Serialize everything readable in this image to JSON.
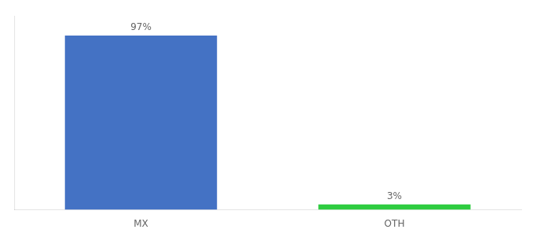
{
  "chart_data": {
    "type": "bar",
    "categories": [
      "MX",
      "OTH"
    ],
    "values": [
      97,
      3
    ],
    "value_labels": [
      "97%",
      "3%"
    ],
    "colors": [
      "#4472C4",
      "#2ECC40"
    ],
    "ylim": [
      0,
      108
    ],
    "grid": false,
    "data_labels": true,
    "tick_labels": "x"
  }
}
